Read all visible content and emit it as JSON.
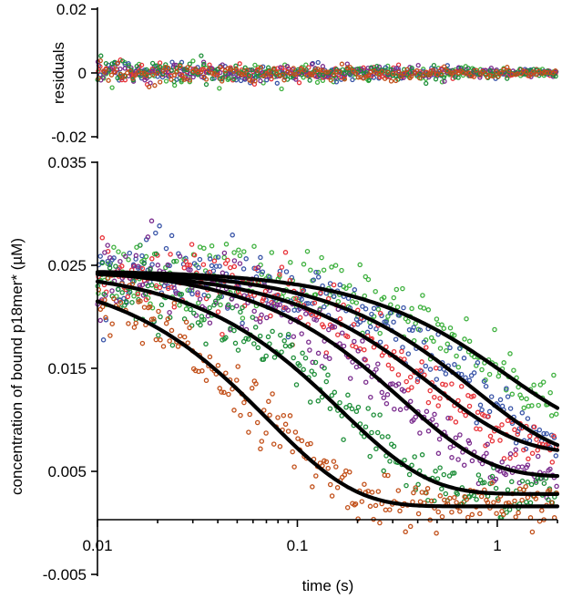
{
  "chart_data": [
    {
      "type": "scatter",
      "panel": "residuals",
      "ylabel": "residuals",
      "xlabel": "",
      "xscale": "log",
      "xlim": [
        0.01,
        2
      ],
      "ylim": [
        -0.02,
        0.02
      ],
      "yticks": [
        {
          "value": 0.02,
          "label": "0.02"
        },
        {
          "value": 0,
          "label": "0"
        },
        {
          "value": -0.02,
          "label": "-0.02"
        }
      ],
      "series": [
        {
          "color": "#3fb13f",
          "scatter_amplitude": 0.0035
        },
        {
          "color": "#3a55a8",
          "scatter_amplitude": 0.0032
        },
        {
          "color": "#e8343a",
          "scatter_amplitude": 0.0032
        },
        {
          "color": "#7b2d8e",
          "scatter_amplitude": 0.0032
        },
        {
          "color": "#1f8f3a",
          "scatter_amplitude": 0.0034
        },
        {
          "color": "#c2501a",
          "scatter_amplitude": 0.003
        }
      ],
      "grid": false
    },
    {
      "type": "scatter",
      "panel": "main",
      "title": "",
      "xlabel": "time (s)",
      "ylabel": "concentration of bound p18mer* (µM)",
      "xscale": "log",
      "xlim": [
        0.01,
        2
      ],
      "ylim": [
        -0.005,
        0.035
      ],
      "xticks": [
        {
          "value": 0.01,
          "label": "0.01"
        },
        {
          "value": 0.1,
          "label": "0.1"
        },
        {
          "value": 1,
          "label": "1"
        }
      ],
      "yticks": [
        {
          "value": 0.035,
          "label": "0.035"
        },
        {
          "value": 0.025,
          "label": "0.025"
        },
        {
          "value": 0.015,
          "label": "0.015"
        },
        {
          "value": 0.005,
          "label": "0.005"
        },
        {
          "value": -0.005,
          "label": "-0.005"
        }
      ],
      "fit_model": "single exponential decay: y = y_end + (y0 - y_end) * exp(-k * t)",
      "series": [
        {
          "color": "#3fb13f",
          "y0": 0.0245,
          "y_end": 0.0085,
          "k": 0.9,
          "noise": 0.0016
        },
        {
          "color": "#3a55a8",
          "y0": 0.0245,
          "y_end": 0.0062,
          "k": 1.3,
          "noise": 0.0015
        },
        {
          "color": "#e8343a",
          "y0": 0.0245,
          "y_end": 0.0068,
          "k": 2.1,
          "noise": 0.0015
        },
        {
          "color": "#7b2d8e",
          "y0": 0.0248,
          "y_end": 0.0045,
          "k": 3.0,
          "noise": 0.0015
        },
        {
          "color": "#1f8f3a",
          "y0": 0.0247,
          "y_end": 0.0028,
          "k": 6.0,
          "noise": 0.0015
        },
        {
          "color": "#c2501a",
          "y0": 0.0245,
          "y_end": 0.0016,
          "k": 14.0,
          "noise": 0.0013
        }
      ],
      "fit_line_color": "#000000",
      "grid": false
    }
  ]
}
